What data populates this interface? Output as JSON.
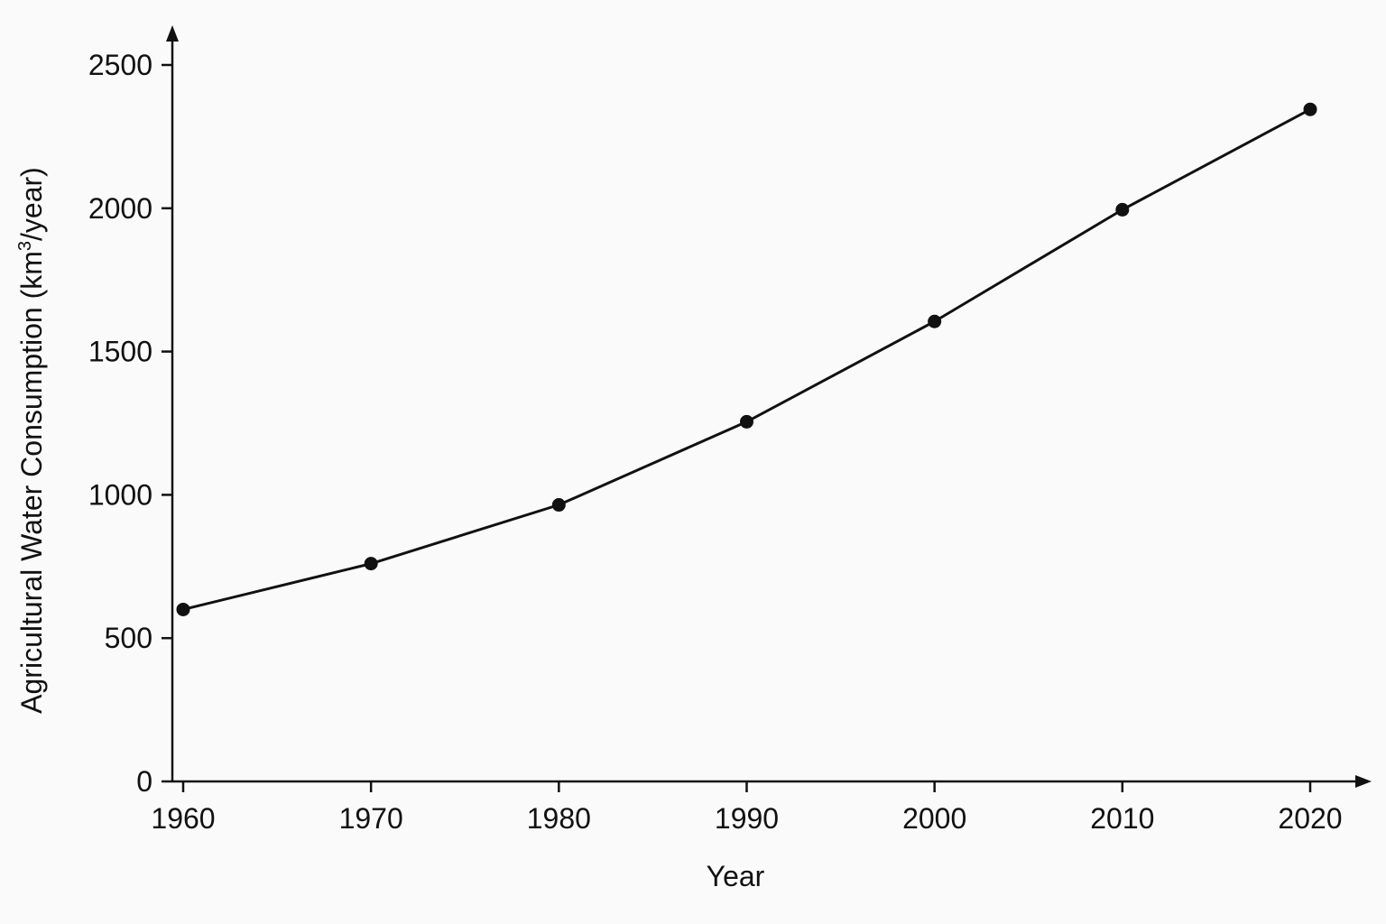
{
  "chart_data": {
    "type": "line",
    "xlabel": "Year",
    "ylabel": "Agricultural Water Consumption (km³/year)",
    "ylabel_parts": {
      "before": "Agricultural Water Consumption (km",
      "sup": "3",
      "after": "/year)"
    },
    "x": [
      1960,
      1970,
      1980,
      1990,
      2000,
      2010,
      2020
    ],
    "values": [
      600,
      760,
      965,
      1255,
      1605,
      1995,
      2345
    ],
    "xticks": [
      "1960",
      "1970",
      "1980",
      "1990",
      "2000",
      "2010",
      "2020"
    ],
    "yticks": [
      "0",
      "500",
      "1000",
      "1500",
      "2000",
      "2500"
    ],
    "ylim": [
      0,
      2500
    ],
    "xlim": [
      1960,
      2020
    ],
    "grid": false,
    "line_color": "#111111"
  }
}
